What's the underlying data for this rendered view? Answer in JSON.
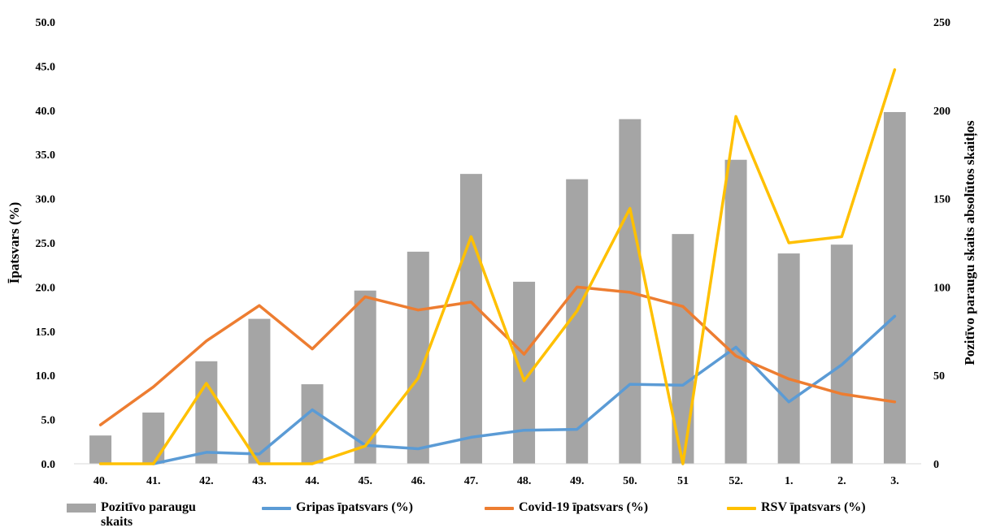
{
  "chart_data": {
    "type": "bar",
    "title": "",
    "ylabel": "Īpatsvars (%)",
    "y2label": "Pozitīvo paraugu skaits absolūtos skaitļos",
    "ylim": [
      0,
      50
    ],
    "y2lim": [
      0,
      250
    ],
    "yticks": [
      "0.0",
      "5.0",
      "10.0",
      "15.0",
      "20.0",
      "25.0",
      "30.0",
      "35.0",
      "40.0",
      "45.0",
      "50.0"
    ],
    "y2ticks": [
      "0",
      "50",
      "100",
      "150",
      "200",
      "250"
    ],
    "categories": [
      "40.",
      "41.",
      "42.",
      "43.",
      "44.",
      "45.",
      "46.",
      "47.",
      "48.",
      "49.",
      "50.",
      "51",
      "52.",
      "1.",
      "2.",
      "3."
    ],
    "grid": false,
    "legend_position": "bottom",
    "series": [
      {
        "name": "Pozitīvo paraugu skaits",
        "type": "bar",
        "axis": "right",
        "color": "#a5a5a5",
        "values": [
          16,
          29,
          58,
          82,
          45,
          98,
          120,
          164,
          103,
          161,
          195,
          130,
          172,
          119,
          124,
          199
        ]
      },
      {
        "name": "Gripas īpatsvars (%)",
        "type": "line",
        "axis": "left",
        "color": "#5b9bd5",
        "values": [
          null,
          0.0,
          1.3,
          1.1,
          6.1,
          2.1,
          1.7,
          3.0,
          3.8,
          3.9,
          9.0,
          8.9,
          13.2,
          7.0,
          11.2,
          16.7
        ]
      },
      {
        "name": "Covid-19 īpatsvars (%)",
        "type": "line",
        "axis": "left",
        "color": "#ed7d31",
        "values": [
          4.4,
          8.7,
          13.9,
          17.9,
          13.0,
          18.9,
          17.4,
          18.3,
          12.4,
          20.0,
          19.4,
          17.8,
          12.2,
          9.6,
          7.9,
          7.0
        ]
      },
      {
        "name": "RSV īpatsvars (%)",
        "type": "line",
        "axis": "left",
        "color": "#ffc000",
        "values": [
          0.0,
          0.0,
          9.1,
          0.0,
          0.0,
          2.0,
          9.7,
          25.7,
          9.4,
          17.3,
          28.9,
          0.0,
          39.3,
          25.0,
          25.7,
          44.6
        ]
      }
    ]
  },
  "legend": {
    "bar_label_line1": "Pozitīvo paraugu",
    "bar_label_line2": "skaits",
    "gripas_label": "Gripas īpatsvars (%)",
    "covid_label": "Covid-19 īpatsvars (%)",
    "rsv_label": "RSV īpatsvars (%)"
  }
}
